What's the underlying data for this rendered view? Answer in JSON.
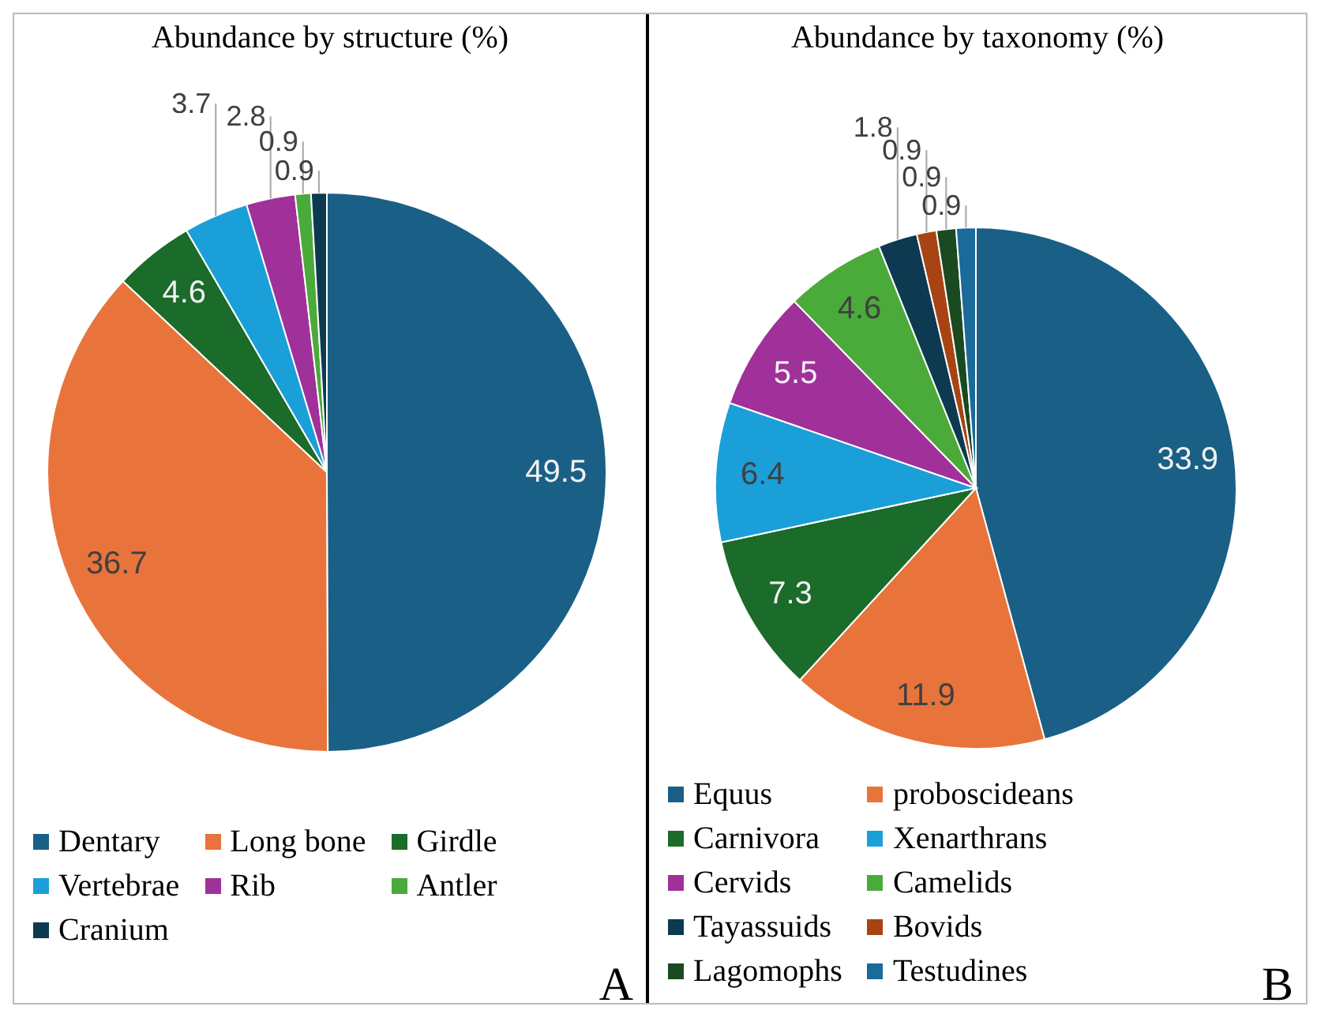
{
  "chart_data": [
    {
      "type": "pie",
      "title": "Abundance by structure (%)",
      "categories": [
        "Dentary",
        "Long bone",
        "Girdle",
        "Vertebrae",
        "Rib",
        "Antler",
        "Cranium"
      ],
      "values": [
        49.5,
        36.7,
        4.6,
        3.7,
        2.8,
        0.9,
        0.9
      ],
      "colors": [
        "#1a5f86",
        "#e8743b",
        "#1b6b2a",
        "#1a9fd8",
        "#a0309a",
        "#4aaa3a",
        "#0d3a50"
      ],
      "data_labels": true,
      "legend": "bottom",
      "annotations": [
        "A"
      ]
    },
    {
      "type": "pie",
      "title": "Abundance by taxonomy (%)",
      "categories": [
        "Equus",
        "proboscideans",
        "Carnivora",
        "Xenarthrans",
        "Cervids",
        "Camelids",
        "Tayassuids",
        "Bovids",
        "Lagomophs",
        "Testudines"
      ],
      "values": [
        33.9,
        11.9,
        7.3,
        6.4,
        5.5,
        4.6,
        1.8,
        0.9,
        0.9,
        0.9
      ],
      "colors": [
        "#1a5f86",
        "#e8743b",
        "#1b6b2a",
        "#1a9fd8",
        "#a0309a",
        "#4aaa3a",
        "#0d3a50",
        "#a84414",
        "#1a4a20",
        "#1a6a9a"
      ],
      "data_labels": true,
      "legend": "bottom",
      "annotations": [
        "B"
      ]
    }
  ]
}
